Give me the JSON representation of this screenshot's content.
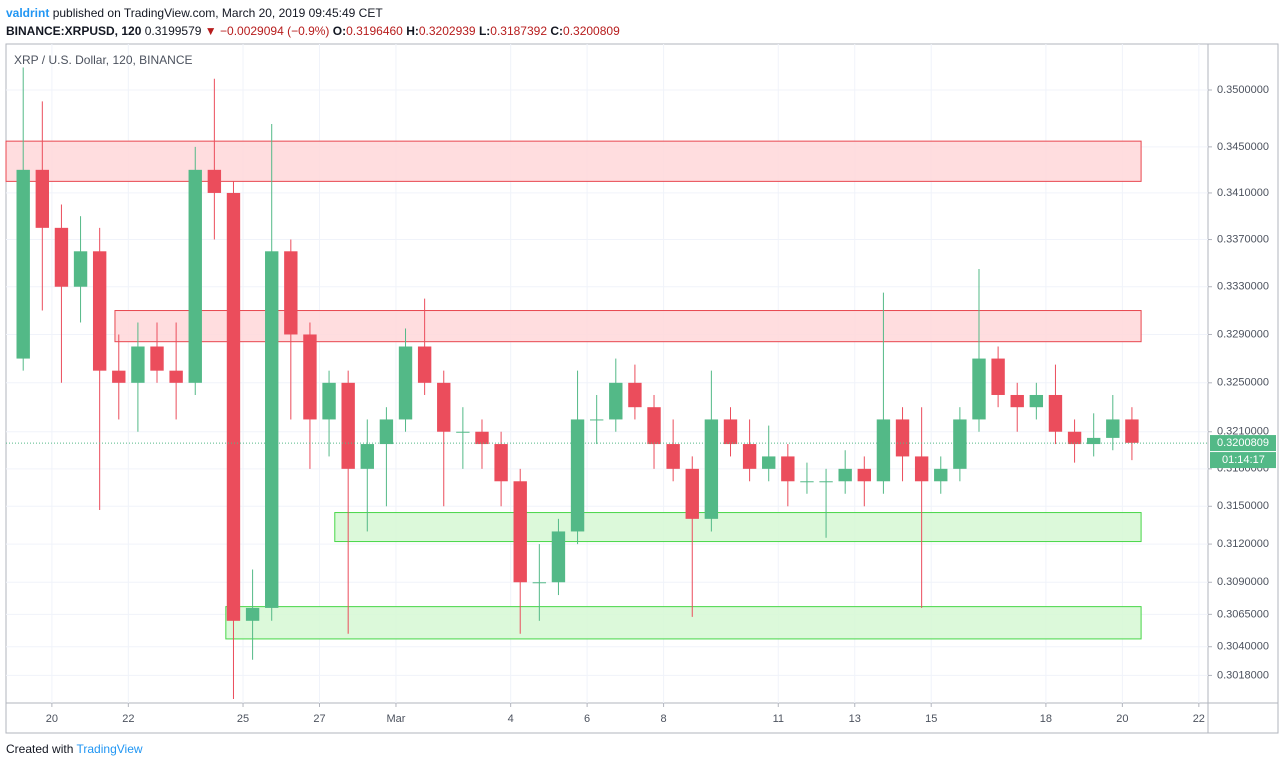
{
  "header": {
    "author": "valdrint",
    "published": "published on TradingView.com, March 20, 2019 09:45:49 CET",
    "symbol": "BINANCE:XRPUSD, 120",
    "price": "0.3199579",
    "change": "▼ −0.0029094 (−0.9%)",
    "ohlc": [
      {
        "label": "O:",
        "value": "0.3196460"
      },
      {
        "label": "H:",
        "value": "0.3202939"
      },
      {
        "label": "L:",
        "value": "0.3187392"
      },
      {
        "label": "C:",
        "value": "0.3200809"
      }
    ]
  },
  "footer": {
    "created": "Created with",
    "brand": "TradingView"
  },
  "chart_data": {
    "type": "candlestick",
    "title": "XRP / U.S. Dollar, 120, BINANCE",
    "log_scale": true,
    "grid": true,
    "up_color": "#53b987",
    "down_color": "#eb4d5c",
    "x": [
      19.25,
      19.75,
      20.25,
      20.75,
      21.25,
      21.75,
      22.25,
      22.75,
      23.25,
      23.75,
      24.25,
      24.75,
      25.25,
      25.75,
      26.25,
      26.75,
      27.25,
      27.75,
      28.25,
      28.75,
      29.25,
      29.75,
      30.25,
      30.75,
      31.25,
      31.75,
      32.25,
      32.75,
      33.25,
      33.75,
      34.25,
      34.75,
      35.25,
      35.75,
      36.25,
      36.75,
      37.25,
      37.75,
      38.25,
      38.75,
      39.25,
      39.75,
      40.25,
      40.75,
      41.25,
      41.75,
      42.25,
      42.75,
      43.25,
      43.75,
      44.25,
      44.75,
      45.25,
      45.75,
      46.25,
      46.75,
      47.25,
      47.75,
      48.25
    ],
    "open": [
      0.327,
      0.343,
      0.338,
      0.333,
      0.336,
      0.326,
      0.325,
      0.328,
      0.326,
      0.325,
      0.343,
      0.341,
      0.306,
      0.307,
      0.336,
      0.329,
      0.322,
      0.325,
      0.318,
      0.32,
      0.322,
      0.328,
      0.325,
      0.321,
      0.321,
      0.32,
      0.317,
      0.309,
      0.309,
      0.313,
      0.322,
      0.322,
      0.325,
      0.323,
      0.32,
      0.318,
      0.314,
      0.322,
      0.32,
      0.318,
      0.319,
      0.317,
      0.317,
      0.317,
      0.318,
      0.317,
      0.322,
      0.319,
      0.317,
      0.318,
      0.322,
      0.327,
      0.324,
      0.323,
      0.324,
      0.321,
      0.32,
      0.3205,
      0.322
    ],
    "high": [
      0.352,
      0.349,
      0.34,
      0.339,
      0.338,
      0.329,
      0.33,
      0.33,
      0.33,
      0.345,
      0.351,
      0.342,
      0.31,
      0.347,
      0.337,
      0.33,
      0.326,
      0.326,
      0.322,
      0.323,
      0.3295,
      0.332,
      0.326,
      0.323,
      0.322,
      0.321,
      0.318,
      0.312,
      0.314,
      0.326,
      0.324,
      0.327,
      0.3265,
      0.324,
      0.322,
      0.319,
      0.326,
      0.323,
      0.322,
      0.3215,
      0.32,
      0.3185,
      0.318,
      0.3195,
      0.319,
      0.3325,
      0.323,
      0.323,
      0.319,
      0.323,
      0.3345,
      0.328,
      0.325,
      0.325,
      0.3265,
      0.322,
      0.3225,
      0.324,
      0.323
    ],
    "low": [
      0.326,
      0.331,
      0.325,
      0.33,
      0.3147,
      0.322,
      0.321,
      0.325,
      0.322,
      0.324,
      0.337,
      0.3,
      0.303,
      0.306,
      0.322,
      0.318,
      0.319,
      0.305,
      0.313,
      0.315,
      0.321,
      0.324,
      0.315,
      0.318,
      0.318,
      0.315,
      0.305,
      0.306,
      0.308,
      0.312,
      0.32,
      0.321,
      0.322,
      0.318,
      0.317,
      0.3063,
      0.313,
      0.319,
      0.317,
      0.317,
      0.315,
      0.316,
      0.3125,
      0.316,
      0.315,
      0.316,
      0.317,
      0.307,
      0.316,
      0.317,
      0.321,
      0.323,
      0.321,
      0.322,
      0.32,
      0.3185,
      0.319,
      0.3195,
      0.3187
    ],
    "close": [
      0.343,
      0.338,
      0.333,
      0.336,
      0.326,
      0.325,
      0.328,
      0.326,
      0.325,
      0.343,
      0.341,
      0.306,
      0.307,
      0.336,
      0.329,
      0.322,
      0.325,
      0.318,
      0.32,
      0.322,
      0.328,
      0.325,
      0.321,
      0.321,
      0.32,
      0.317,
      0.309,
      0.309,
      0.313,
      0.322,
      0.322,
      0.325,
      0.323,
      0.32,
      0.318,
      0.314,
      0.322,
      0.32,
      0.318,
      0.319,
      0.317,
      0.317,
      0.317,
      0.318,
      0.317,
      0.322,
      0.319,
      0.317,
      0.318,
      0.322,
      0.327,
      0.324,
      0.323,
      0.324,
      0.321,
      0.32,
      0.3205,
      0.322,
      0.3201
    ],
    "zones": [
      {
        "x": [
          18.8,
          48.49
        ],
        "y": [
          0.342,
          0.3455
        ],
        "fill": "#ffd7d9",
        "stroke": "#e8474f"
      },
      {
        "x": [
          21.65,
          48.49
        ],
        "y": [
          0.3284,
          0.331
        ],
        "fill": "#ffd7d9",
        "stroke": "#e8474f"
      },
      {
        "x": [
          27.4,
          48.49
        ],
        "y": [
          0.3122,
          0.3145
        ],
        "fill": "#d6f8d4",
        "stroke": "#47d647"
      },
      {
        "x": [
          24.55,
          48.49
        ],
        "y": [
          0.3046,
          0.3071
        ],
        "fill": "#d6f8d4",
        "stroke": "#47d647"
      }
    ],
    "last_price": 0.3200809,
    "countdown": "01:14:17",
    "xlim": [
      18.8,
      50.24
    ],
    "xticks": [
      {
        "value": 20,
        "label": "20"
      },
      {
        "value": 22,
        "label": "22"
      },
      {
        "value": 25,
        "label": "25"
      },
      {
        "value": 27,
        "label": "27"
      },
      {
        "value": 29,
        "label": "Mar"
      },
      {
        "value": 32,
        "label": "4"
      },
      {
        "value": 34,
        "label": "6"
      },
      {
        "value": 36,
        "label": "8"
      },
      {
        "value": 39,
        "label": "11"
      },
      {
        "value": 41,
        "label": "13"
      },
      {
        "value": 43,
        "label": "15"
      },
      {
        "value": 46,
        "label": "18"
      },
      {
        "value": 48,
        "label": "20"
      },
      {
        "value": 50,
        "label": "22"
      }
    ],
    "ylim": [
      0.2997,
      0.3541
    ],
    "yticks": [
      {
        "value": 0.35,
        "label": "0.3500000"
      },
      {
        "value": 0.345,
        "label": "0.3450000"
      },
      {
        "value": 0.341,
        "label": "0.3410000"
      },
      {
        "value": 0.337,
        "label": "0.3370000"
      },
      {
        "value": 0.333,
        "label": "0.3330000"
      },
      {
        "value": 0.329,
        "label": "0.3290000"
      },
      {
        "value": 0.325,
        "label": "0.3250000"
      },
      {
        "value": 0.321,
        "label": "0.3210000"
      },
      {
        "value": 0.318,
        "label": "0.3180000"
      },
      {
        "value": 0.315,
        "label": "0.3150000"
      },
      {
        "value": 0.312,
        "label": "0.3120000"
      },
      {
        "value": 0.309,
        "label": "0.3090000"
      },
      {
        "value": 0.3065,
        "label": "0.3065000"
      },
      {
        "value": 0.304,
        "label": "0.3040000"
      },
      {
        "value": 0.3018,
        "label": "0.3018000"
      }
    ]
  }
}
